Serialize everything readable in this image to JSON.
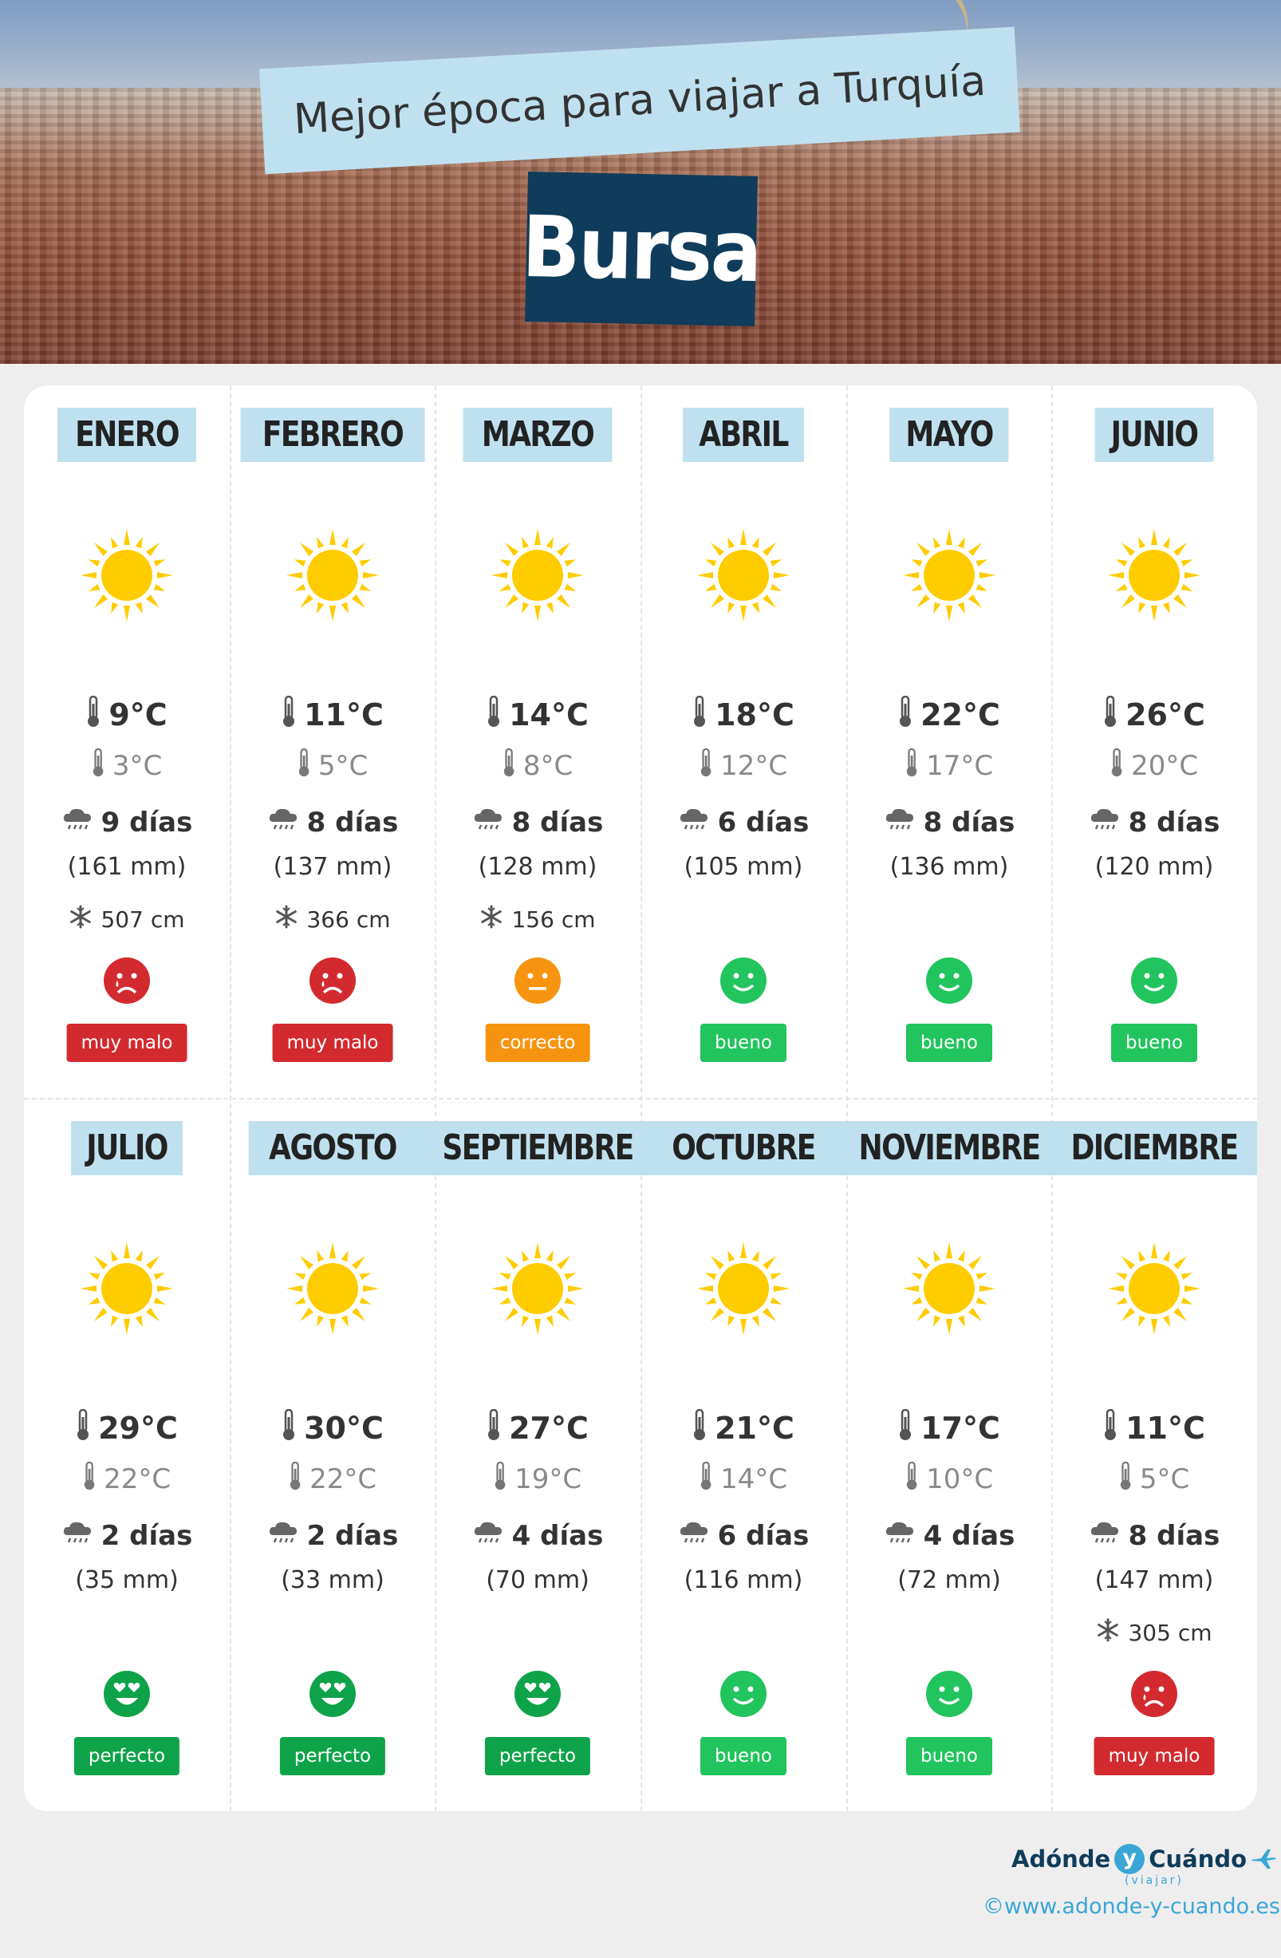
{
  "header": {
    "subtitle": "Mejor época para viajar a Turquía",
    "city": "Bursa"
  },
  "months": [
    {
      "name": "ENERO",
      "tmax": "9°C",
      "tmin": "3°C",
      "rain_days": "9 días",
      "rain_mm": "(161 mm)",
      "snow": "507 cm",
      "rating": "muy malo",
      "rating_level": "very-bad",
      "weather_icon": "sun-icon"
    },
    {
      "name": "FEBRERO",
      "tmax": "11°C",
      "tmin": "5°C",
      "rain_days": "8 días",
      "rain_mm": "(137 mm)",
      "snow": "366 cm",
      "rating": "muy malo",
      "rating_level": "very-bad",
      "weather_icon": "sun-icon"
    },
    {
      "name": "MARZO",
      "tmax": "14°C",
      "tmin": "8°C",
      "rain_days": "8 días",
      "rain_mm": "(128 mm)",
      "snow": "156 cm",
      "rating": "correcto",
      "rating_level": "ok",
      "weather_icon": "sun-icon"
    },
    {
      "name": "ABRIL",
      "tmax": "18°C",
      "tmin": "12°C",
      "rain_days": "6 días",
      "rain_mm": "(105 mm)",
      "snow": "",
      "rating": "bueno",
      "rating_level": "good",
      "weather_icon": "sun-icon"
    },
    {
      "name": "MAYO",
      "tmax": "22°C",
      "tmin": "17°C",
      "rain_days": "8 días",
      "rain_mm": "(136 mm)",
      "snow": "",
      "rating": "bueno",
      "rating_level": "good",
      "weather_icon": "sun-icon"
    },
    {
      "name": "JUNIO",
      "tmax": "26°C",
      "tmin": "20°C",
      "rain_days": "8 días",
      "rain_mm": "(120 mm)",
      "snow": "",
      "rating": "bueno",
      "rating_level": "good",
      "weather_icon": "sun-icon"
    },
    {
      "name": "JULIO",
      "tmax": "29°C",
      "tmin": "22°C",
      "rain_days": "2 días",
      "rain_mm": "(35 mm)",
      "snow": "",
      "rating": "perfecto",
      "rating_level": "perfect",
      "weather_icon": "sun-icon"
    },
    {
      "name": "AGOSTO",
      "tmax": "30°C",
      "tmin": "22°C",
      "rain_days": "2 días",
      "rain_mm": "(33 mm)",
      "snow": "",
      "rating": "perfecto",
      "rating_level": "perfect",
      "weather_icon": "sun-icon"
    },
    {
      "name": "SEPTIEMBRE",
      "tmax": "27°C",
      "tmin": "19°C",
      "rain_days": "4 días",
      "rain_mm": "(70 mm)",
      "snow": "",
      "rating": "perfecto",
      "rating_level": "perfect",
      "weather_icon": "sun-icon"
    },
    {
      "name": "OCTUBRE",
      "tmax": "21°C",
      "tmin": "14°C",
      "rain_days": "6 días",
      "rain_mm": "(116 mm)",
      "snow": "",
      "rating": "bueno",
      "rating_level": "good",
      "weather_icon": "sun-icon"
    },
    {
      "name": "NOVIEMBRE",
      "tmax": "17°C",
      "tmin": "10°C",
      "rain_days": "4 días",
      "rain_mm": "(72 mm)",
      "snow": "",
      "rating": "bueno",
      "rating_level": "good",
      "weather_icon": "sun-icon"
    },
    {
      "name": "DICIEMBRE",
      "tmax": "11°C",
      "tmin": "5°C",
      "rain_days": "8 días",
      "rain_mm": "(147 mm)",
      "snow": "305 cm",
      "rating": "muy malo",
      "rating_level": "very-bad",
      "weather_icon": "sun-icon"
    }
  ],
  "colors": {
    "very-bad": "#d32a2f",
    "ok": "#f7940f",
    "good": "#21c45d",
    "perfect": "#0fa349",
    "banner_light": "#bfe1ef",
    "banner_dark": "#0f3c5a",
    "sun": "#ffcc00"
  },
  "footer": {
    "logo_part1": "Adónde",
    "logo_y": "y",
    "logo_part2": "Cuándo",
    "logo_sub": "(viajar)",
    "url": "©www.adonde-y-cuando.es"
  }
}
